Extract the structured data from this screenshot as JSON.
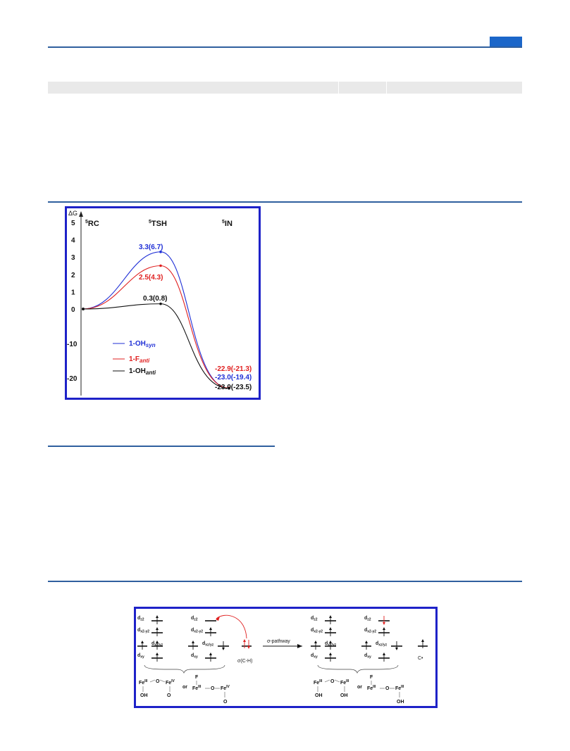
{
  "chart_data": {
    "type": "line",
    "title": "",
    "ylabel": "ΔG",
    "categories": [
      "5RC",
      "5TSH",
      "5IN"
    ],
    "category_labels": [
      {
        "sup": "5",
        "main": "RC"
      },
      {
        "sup": "5",
        "main": "TSH"
      },
      {
        "sup": "5",
        "main": "IN"
      }
    ],
    "yticks": [
      "5",
      "4",
      "3",
      "2",
      "1",
      "0",
      "-10",
      "-20"
    ],
    "series": [
      {
        "name": "1-OHsyn",
        "legend_main": "1-OH",
        "legend_sub": "syn",
        "color": "#1f2fd6",
        "values": [
          0,
          3.3,
          -23.0
        ],
        "labels": [
          "",
          "3.3(6.7)",
          "-23.0(-19.4)"
        ]
      },
      {
        "name": "1-Fanti",
        "legend_main": "1-F",
        "legend_sub": "anti",
        "color": "#e02020",
        "values": [
          0,
          2.5,
          -22.9
        ],
        "labels": [
          "",
          "2.5(4.3)",
          "-22.9(-21.3)"
        ]
      },
      {
        "name": "1-OHanti",
        "legend_main": "1-OH",
        "legend_sub": "anti",
        "color": "#111111",
        "values": [
          0,
          0.3,
          -23.0
        ],
        "labels": [
          "",
          "0.3(0.8)",
          "-23.0(-23.5)"
        ]
      }
    ]
  },
  "scheme": {
    "orbitals_left": [
      "d",
      "d",
      "d",
      "d"
    ],
    "orbital_subs_left": [
      "z2",
      "x2-y2",
      "xz/yz",
      "xy"
    ],
    "sigma_label": "σ(C-H)",
    "arrow_label": "σ-pathway",
    "radical_label": "C•",
    "left_species": "FeIII–O–FeIV or FeIII–O–FeIV",
    "right_species": "FeIII–O–FeIII or FeIII–O–FeIII",
    "fe3": "Fe",
    "fe3_sup": "III",
    "fe4_sup": "IV",
    "oh": "OH",
    "o": "O",
    "f": "F",
    "or": "or"
  }
}
